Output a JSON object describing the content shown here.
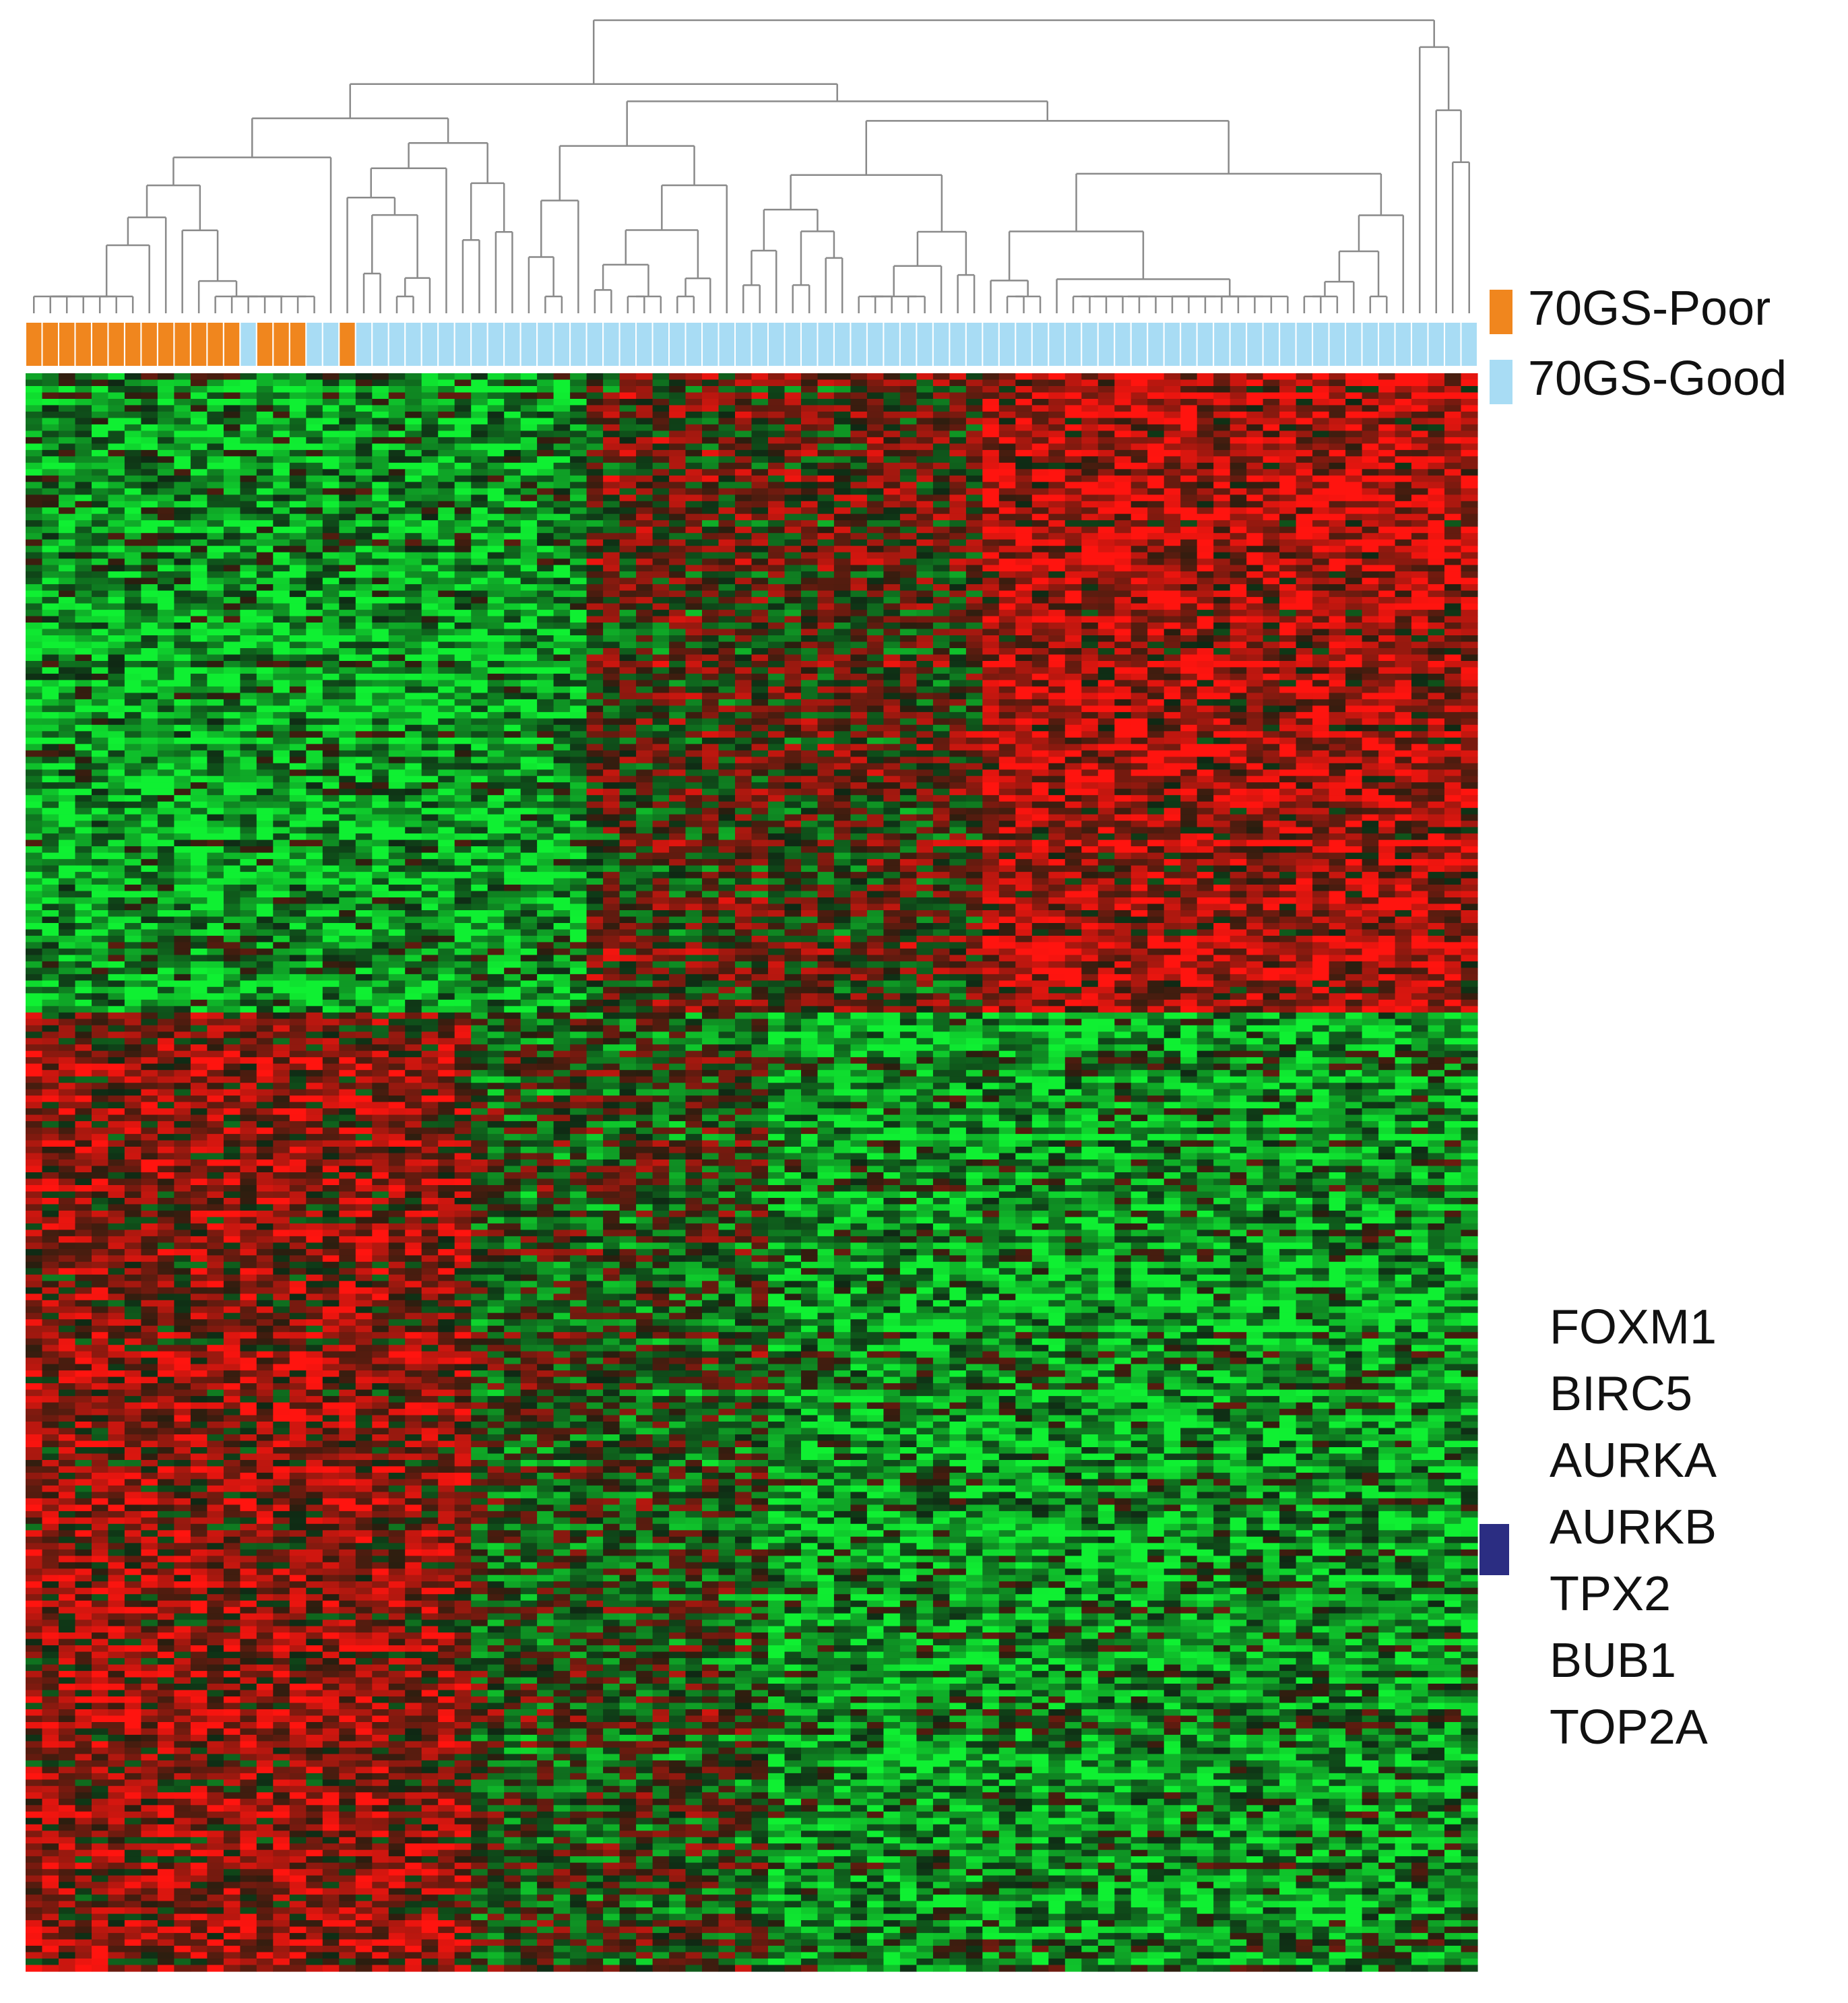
{
  "legend": {
    "items": [
      {
        "label": "70GS-Poor",
        "color": "#f0861e"
      },
      {
        "label": "70GS-Good",
        "color": "#a8dcf4"
      }
    ]
  },
  "sample_groups": [
    0,
    0,
    0,
    0,
    0,
    0,
    0,
    0,
    0,
    0,
    0,
    0,
    0,
    1,
    0,
    0,
    0,
    1,
    1,
    0,
    1,
    1,
    1,
    1,
    1,
    1,
    1,
    1,
    1,
    1,
    1,
    1,
    1,
    1,
    1,
    1,
    1,
    1,
    1,
    1,
    1,
    1,
    1,
    1,
    1,
    1,
    1,
    1,
    1,
    1,
    1,
    1,
    1,
    1,
    1,
    1,
    1,
    1,
    1,
    1,
    1,
    1,
    1,
    1,
    1,
    1,
    1,
    1,
    1,
    1,
    1,
    1,
    1,
    1,
    1,
    1,
    1,
    1,
    1,
    1,
    1,
    1,
    1,
    1,
    1,
    1,
    1,
    1
  ],
  "genes": [
    "FOXM1",
    "BIRC5",
    "AURKA",
    "AURKB",
    "TPX2",
    "BUB1",
    "TOP2A"
  ]
}
